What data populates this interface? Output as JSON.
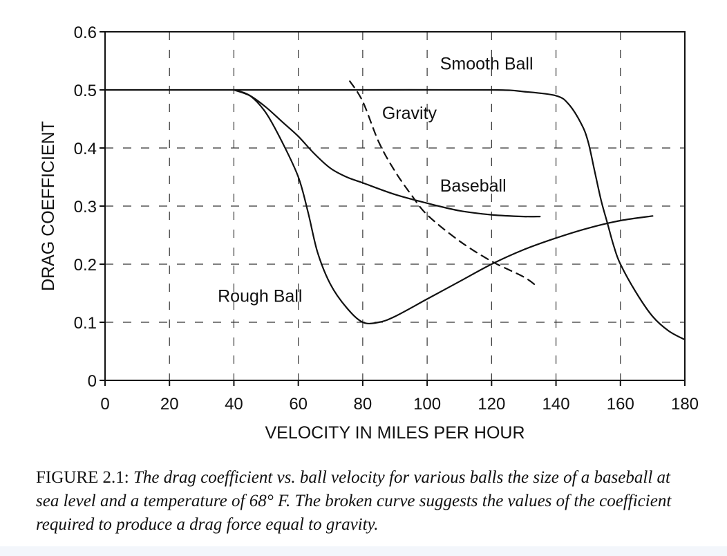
{
  "caption": {
    "label": "FIGURE 2.1:",
    "text": "The drag coefficient vs. ball velocity for various balls the size of a baseball at sea level and a temperature of 68° F. The broken curve suggests the values of the coefficient required to produce a drag force equal to gravity."
  },
  "chart_data": {
    "type": "line",
    "xlabel": "VELOCITY IN MILES PER HOUR",
    "ylabel": "DRAG COEFFICIENT",
    "xlim": [
      0,
      180
    ],
    "ylim": [
      0,
      0.6
    ],
    "xticks": [
      0,
      20,
      40,
      60,
      80,
      100,
      120,
      140,
      160,
      180
    ],
    "yticks": [
      0,
      0.1,
      0.2,
      0.3,
      0.4,
      0.5,
      0.6
    ],
    "xtick_labels": [
      "0",
      "20",
      "40",
      "60",
      "80",
      "100",
      "120",
      "140",
      "160",
      "180"
    ],
    "ytick_labels": [
      "0",
      "0.1",
      "0.2",
      "0.3",
      "0.4",
      "0.5",
      "0.6"
    ],
    "grid": "dashed",
    "series": [
      {
        "name": "Smooth Ball",
        "style": "solid",
        "x": [
          0,
          40,
          80,
          120,
          130,
          140,
          144,
          148,
          150,
          152,
          154,
          156,
          158,
          160,
          165,
          170,
          175,
          180
        ],
        "y": [
          0.5,
          0.5,
          0.5,
          0.5,
          0.497,
          0.49,
          0.475,
          0.44,
          0.41,
          0.36,
          0.31,
          0.27,
          0.23,
          0.2,
          0.15,
          0.11,
          0.085,
          0.07
        ]
      },
      {
        "name": "Baseball",
        "style": "solid",
        "x": [
          40,
          45,
          50,
          55,
          60,
          65,
          70,
          75,
          80,
          90,
          100,
          110,
          120,
          130,
          135
        ],
        "y": [
          0.5,
          0.49,
          0.47,
          0.445,
          0.42,
          0.39,
          0.365,
          0.35,
          0.34,
          0.32,
          0.305,
          0.292,
          0.285,
          0.282,
          0.282
        ]
      },
      {
        "name": "Rough Ball",
        "style": "solid",
        "x": [
          40,
          45,
          50,
          55,
          60,
          63,
          66,
          70,
          75,
          80,
          85,
          90,
          100,
          110,
          120,
          130,
          140,
          150,
          160,
          170
        ],
        "y": [
          0.5,
          0.49,
          0.46,
          0.41,
          0.35,
          0.29,
          0.22,
          0.165,
          0.125,
          0.1,
          0.1,
          0.11,
          0.14,
          0.17,
          0.2,
          0.225,
          0.245,
          0.262,
          0.275,
          0.283
        ]
      },
      {
        "name": "Gravity",
        "style": "dashed",
        "x": [
          76,
          80,
          85,
          90,
          95,
          100,
          110,
          120,
          130,
          134
        ],
        "y": [
          0.515,
          0.48,
          0.41,
          0.36,
          0.32,
          0.285,
          0.24,
          0.205,
          0.178,
          0.162
        ]
      }
    ],
    "annotations": [
      {
        "text": "Smooth Ball",
        "x": 104,
        "y": 0.535
      },
      {
        "text": "Gravity",
        "x": 86,
        "y": 0.45
      },
      {
        "text": "Baseball",
        "x": 104,
        "y": 0.325
      },
      {
        "text": "Rough Ball",
        "x": 35,
        "y": 0.135
      }
    ]
  }
}
